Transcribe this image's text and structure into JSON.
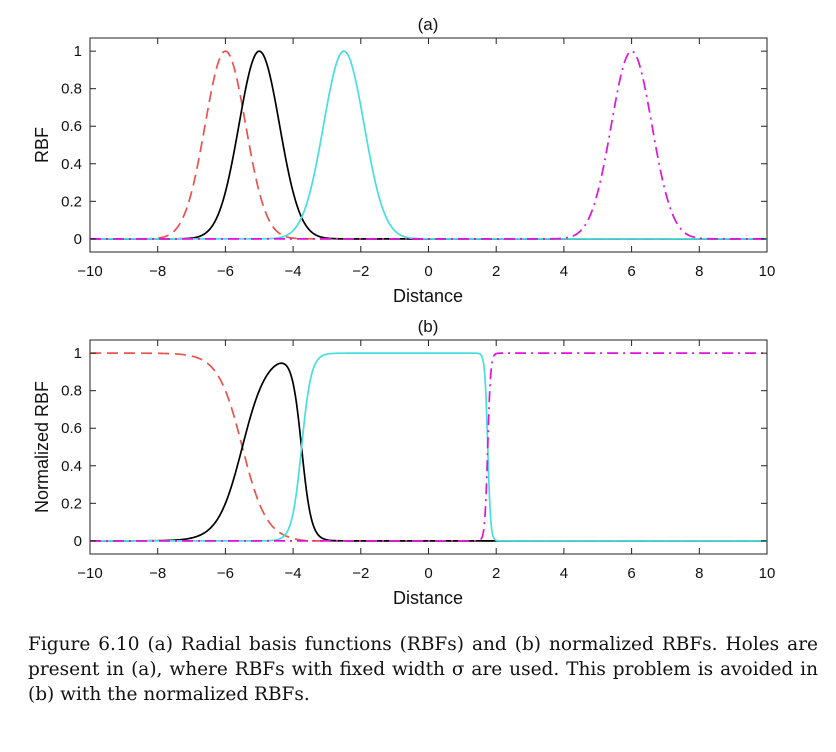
{
  "chart_data": [
    {
      "type": "line",
      "title": "(a)",
      "xlabel": "Distance",
      "ylabel": "RBF",
      "xlim": [
        -10,
        10
      ],
      "ylim": [
        -0.07,
        1.07
      ],
      "xticks": [
        -10,
        -8,
        -6,
        -4,
        -2,
        0,
        2,
        4,
        6,
        8,
        10
      ],
      "yticks": [
        0,
        0.2,
        0.4,
        0.6,
        0.8,
        1
      ],
      "xtick_labels": [
        "−10",
        "−8",
        "−6",
        "−4",
        "−2",
        "0",
        "2",
        "4",
        "6",
        "8",
        "10"
      ],
      "ytick_labels": [
        "0",
        "0.2",
        "0.4",
        "0.6",
        "0.8",
        "1"
      ],
      "grid": false,
      "kind": "gaussian",
      "sigma": 0.6,
      "series": [
        {
          "center": -6,
          "color": "#e8534f",
          "style": "dashed"
        },
        {
          "center": -5,
          "color": "#000000",
          "style": "solid"
        },
        {
          "center": -2.5,
          "color": "#48dede",
          "style": "solid"
        },
        {
          "center": 6,
          "color": "#dc14dc",
          "style": "dashdot"
        }
      ]
    },
    {
      "type": "line",
      "title": "(b)",
      "xlabel": "Distance",
      "ylabel": "Normalized RBF",
      "xlim": [
        -10,
        10
      ],
      "ylim": [
        -0.07,
        1.07
      ],
      "xticks": [
        -10,
        -8,
        -6,
        -4,
        -2,
        0,
        2,
        4,
        6,
        8,
        10
      ],
      "yticks": [
        0,
        0.2,
        0.4,
        0.6,
        0.8,
        1
      ],
      "xtick_labels": [
        "−10",
        "−8",
        "−6",
        "−4",
        "−2",
        "0",
        "2",
        "4",
        "6",
        "8",
        "10"
      ],
      "ytick_labels": [
        "0",
        "0.2",
        "0.4",
        "0.6",
        "0.8",
        "1"
      ],
      "grid": false,
      "kind": "normalized",
      "sigma": 0.6,
      "series": [
        {
          "center": -6,
          "color": "#e8534f",
          "style": "dashed"
        },
        {
          "center": -5,
          "color": "#000000",
          "style": "solid"
        },
        {
          "center": -2.5,
          "color": "#48dede",
          "style": "solid"
        },
        {
          "center": 6,
          "color": "#dc14dc",
          "style": "dashdot"
        }
      ]
    }
  ],
  "caption": "Figure 6.10  (a) Radial basis functions (RBFs) and (b) normalized RBFs. Holes are present in (a), where RBFs with fixed width σ are used. This problem is avoided in (b) with the normalized RBFs."
}
